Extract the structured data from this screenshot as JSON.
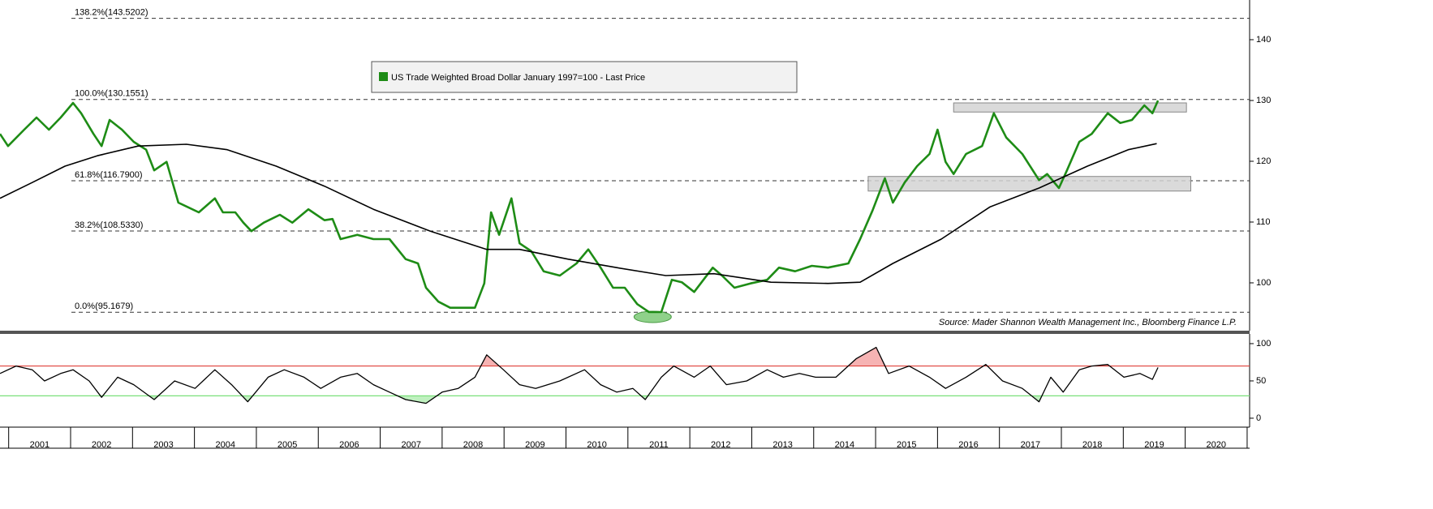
{
  "chart_data": [
    {
      "type": "line",
      "legend_label": "US Trade Weighted Broad Dollar January 1997=100 - Last Price",
      "source": "Source: Mader Shannon Wealth Management Inc., Bloomberg Finance L.P.",
      "xlim": [
        2000.86,
        2021.04
      ],
      "xticks": [
        2001,
        2002,
        2003,
        2004,
        2005,
        2006,
        2007,
        2008,
        2009,
        2010,
        2011,
        2012,
        2013,
        2014,
        2015,
        2016,
        2017,
        2018,
        2019,
        2020
      ],
      "ylim": [
        92.13,
        146.53
      ],
      "yticks": [
        100,
        110,
        120,
        130,
        140
      ],
      "levels": [
        {
          "label": "138.2%(143.5202)",
          "value": 143.5202
        },
        {
          "label": "100.0%(130.1551)",
          "value": 130.1551
        },
        {
          "label": "61.8%(116.7900)",
          "value": 116.79
        },
        {
          "label": "38.2%(108.5330)",
          "value": 108.533
        },
        {
          "label": "0.0%(95.1679)",
          "value": 95.1679
        }
      ],
      "boxes": [
        {
          "x0": 2016.26,
          "x1": 2020.02,
          "y0": 128.1,
          "y1": 129.6
        },
        {
          "x0": 2014.88,
          "x1": 2020.09,
          "y0": 115.1,
          "y1": 117.5
        }
      ],
      "highlight": {
        "x": 2011.4,
        "y": 94.4,
        "color": "#8fd18a"
      },
      "series": [
        {
          "name": "US Trade Weighted Broad Dollar January 1997=100 - Last Price",
          "color": "#1e8c16",
          "x": [
            2000.86,
            2000.99,
            2001.25,
            2001.45,
            2001.65,
            2001.84,
            2002.04,
            2002.17,
            2002.37,
            2002.5,
            2002.63,
            2002.83,
            2003.02,
            2003.22,
            2003.35,
            2003.55,
            2003.74,
            2004.07,
            2004.33,
            2004.46,
            2004.66,
            2004.79,
            2004.92,
            2005.12,
            2005.38,
            2005.58,
            2005.84,
            2006.1,
            2006.23,
            2006.36,
            2006.63,
            2006.89,
            2007.15,
            2007.41,
            2007.61,
            2007.74,
            2007.94,
            2008.13,
            2008.53,
            2008.68,
            2008.79,
            2008.92,
            2009.12,
            2009.25,
            2009.44,
            2009.64,
            2009.9,
            2010.17,
            2010.36,
            2010.56,
            2010.76,
            2010.95,
            2011.15,
            2011.34,
            2011.54,
            2011.71,
            2011.87,
            2012.07,
            2012.37,
            2012.52,
            2012.72,
            2012.98,
            2013.25,
            2013.44,
            2013.7,
            2013.97,
            2014.23,
            2014.56,
            2014.75,
            2014.95,
            2015.15,
            2015.28,
            2015.47,
            2015.67,
            2015.87,
            2016.0,
            2016.13,
            2016.26,
            2016.46,
            2016.72,
            2016.91,
            2017.11,
            2017.37,
            2017.64,
            2017.77,
            2017.96,
            2018.09,
            2018.29,
            2018.49,
            2018.75,
            2018.95,
            2019.14,
            2019.34,
            2019.47,
            2019.56
          ],
          "values": [
            124.5,
            122.5,
            125.2,
            127.2,
            125.2,
            127.2,
            129.6,
            127.9,
            124.5,
            122.5,
            126.8,
            125.2,
            123.2,
            121.9,
            118.5,
            119.9,
            113.2,
            111.6,
            113.9,
            111.6,
            111.6,
            109.9,
            108.5,
            109.9,
            111.2,
            109.9,
            112.1,
            110.3,
            110.5,
            107.2,
            107.9,
            107.2,
            107.2,
            103.9,
            103.2,
            99.2,
            96.9,
            95.9,
            95.9,
            99.9,
            111.6,
            107.9,
            113.9,
            106.5,
            105.2,
            101.9,
            101.2,
            103.2,
            105.5,
            102.5,
            99.2,
            99.2,
            96.5,
            95.2,
            95.2,
            100.5,
            100.1,
            98.5,
            102.5,
            101.2,
            99.2,
            99.9,
            100.5,
            102.5,
            101.9,
            102.8,
            102.5,
            103.2,
            107.2,
            111.9,
            117.2,
            113.2,
            116.5,
            119.2,
            121.2,
            125.2,
            119.9,
            117.9,
            121.2,
            122.5,
            127.9,
            123.9,
            121.2,
            116.9,
            117.9,
            115.6,
            118.5,
            123.2,
            124.5,
            127.9,
            126.3,
            126.8,
            129.2,
            127.9,
            130.0
          ]
        },
        {
          "color": "#000000",
          "x": [
            2000.86,
            2001.38,
            2001.91,
            2002.43,
            2003.09,
            2003.87,
            2004.53,
            2005.32,
            2006.1,
            2006.89,
            2007.81,
            2008.72,
            2009.25,
            2010.03,
            2010.82,
            2011.61,
            2012.39,
            2013.31,
            2014.23,
            2014.75,
            2015.28,
            2016.06,
            2016.85,
            2017.64,
            2018.42,
            2019.08,
            2019.54
          ],
          "values": [
            113.9,
            116.5,
            119.2,
            120.9,
            122.5,
            122.8,
            121.9,
            119.2,
            115.9,
            112.1,
            108.5,
            105.5,
            105.5,
            103.9,
            102.5,
            101.2,
            101.5,
            100.1,
            99.9,
            100.1,
            103.2,
            107.2,
            112.5,
            115.6,
            119.2,
            121.9,
            122.9
          ]
        }
      ]
    },
    {
      "type": "line",
      "xlim": [
        2000.86,
        2021.04
      ],
      "ylim": [
        -12,
        113
      ],
      "yticks": [
        0,
        50,
        100
      ],
      "reference_lines": [
        {
          "value": 70,
          "color": "#e0413a",
          "shade": "above",
          "fill": "#f6b3b3"
        },
        {
          "value": 30,
          "color": "#7ae07a",
          "shade": "below",
          "fill": "#bff0bf"
        }
      ],
      "series": [
        {
          "color": "#000000",
          "x": [
            2000.86,
            2001.12,
            2001.38,
            2001.58,
            2001.84,
            2002.04,
            2002.3,
            2002.5,
            2002.76,
            2003.02,
            2003.35,
            2003.68,
            2004.01,
            2004.33,
            2004.6,
            2004.86,
            2005.19,
            2005.45,
            2005.77,
            2006.04,
            2006.36,
            2006.63,
            2006.89,
            2007.15,
            2007.41,
            2007.74,
            2008.0,
            2008.26,
            2008.53,
            2008.72,
            2008.99,
            2009.25,
            2009.51,
            2009.9,
            2010.3,
            2010.56,
            2010.82,
            2011.08,
            2011.28,
            2011.54,
            2011.74,
            2012.07,
            2012.33,
            2012.59,
            2012.92,
            2013.25,
            2013.51,
            2013.77,
            2014.03,
            2014.36,
            2014.69,
            2015.01,
            2015.21,
            2015.54,
            2015.87,
            2016.13,
            2016.46,
            2016.78,
            2017.05,
            2017.37,
            2017.64,
            2017.83,
            2018.03,
            2018.29,
            2018.49,
            2018.75,
            2019.01,
            2019.27,
            2019.47,
            2019.56
          ],
          "values": [
            60,
            70,
            65,
            50,
            60,
            65,
            50,
            28,
            55,
            45,
            25,
            50,
            40,
            65,
            45,
            22,
            55,
            65,
            55,
            40,
            55,
            60,
            45,
            35,
            25,
            20,
            35,
            40,
            55,
            85,
            65,
            45,
            40,
            50,
            65,
            45,
            35,
            40,
            25,
            55,
            70,
            55,
            70,
            45,
            50,
            65,
            55,
            60,
            55,
            55,
            80,
            95,
            60,
            70,
            55,
            40,
            55,
            72,
            50,
            40,
            22,
            55,
            35,
            65,
            70,
            72,
            55,
            60,
            52,
            68
          ]
        }
      ]
    }
  ]
}
